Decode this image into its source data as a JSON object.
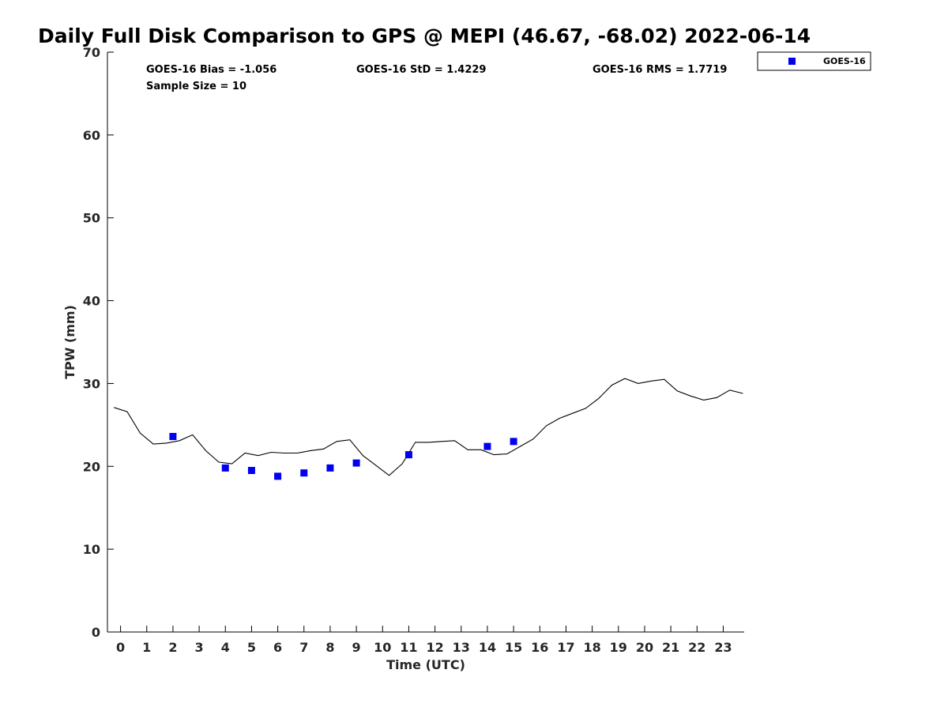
{
  "chart_data": {
    "type": "scatter",
    "title": "Daily Full Disk Comparison to GPS @ MEPI (46.67, -68.02) 2022-06-14",
    "xlabel": "Time (UTC)",
    "ylabel": "TPW (mm)",
    "xlim": [
      -0.5,
      23.8
    ],
    "ylim": [
      0,
      70
    ],
    "x_ticks": [
      0,
      1,
      2,
      3,
      4,
      5,
      6,
      7,
      8,
      9,
      10,
      11,
      12,
      13,
      14,
      15,
      16,
      17,
      18,
      19,
      20,
      21,
      22,
      23
    ],
    "x_tick_labels": [
      "0",
      "1",
      "2",
      "3",
      "4",
      "5",
      "6",
      "7",
      "8",
      "9",
      "10",
      "11",
      "12",
      "13",
      "14",
      "15",
      "16",
      "17",
      "18",
      "19",
      "20",
      "21",
      "22",
      "23"
    ],
    "y_ticks": [
      0,
      10,
      20,
      30,
      40,
      50,
      60,
      70
    ],
    "y_tick_labels": [
      "0",
      "10",
      "20",
      "30",
      "40",
      "50",
      "60",
      "70"
    ],
    "stats": {
      "bias": "GOES-16 Bias = -1.056",
      "std": "GOES-16 StD = 1.4229",
      "rms": "GOES-16 RMS = 1.7719",
      "sample_size": "Sample Size = 10"
    },
    "legend": {
      "position": "top-right",
      "entries": [
        {
          "name": "GOES-16",
          "marker": "square",
          "color": "#0000ee"
        }
      ]
    },
    "series": [
      {
        "name": "GPS",
        "kind": "line",
        "color": "#000000",
        "x": [
          -0.25,
          0.25,
          0.75,
          1.25,
          1.75,
          2.25,
          2.75,
          3.25,
          3.75,
          4.25,
          4.75,
          5.25,
          5.75,
          6.25,
          6.75,
          7.25,
          7.75,
          8.25,
          8.75,
          9.25,
          9.75,
          10.25,
          10.75,
          11.25,
          11.75,
          12.25,
          12.75,
          13.25,
          13.75,
          14.25,
          14.75,
          15.25,
          15.75,
          16.25,
          16.75,
          17.25,
          17.75,
          18.25,
          18.75,
          19.25,
          19.75,
          20.25,
          20.75,
          21.25,
          21.75,
          22.25,
          22.75,
          23.25,
          23.75
        ],
        "y": [
          27.1,
          26.6,
          24.0,
          22.7,
          22.8,
          23.1,
          23.8,
          21.9,
          20.5,
          20.3,
          21.6,
          21.3,
          21.7,
          21.6,
          21.6,
          21.9,
          22.1,
          23.0,
          23.2,
          21.3,
          20.1,
          18.9,
          20.3,
          22.9,
          22.9,
          23.0,
          23.1,
          22.0,
          22.0,
          21.4,
          21.5,
          22.4,
          23.3,
          24.9,
          25.8,
          26.4,
          27.0,
          28.2,
          29.8,
          30.6,
          30.0,
          30.3,
          30.5,
          29.1,
          28.5,
          28.0,
          28.3,
          29.2,
          28.8
        ]
      },
      {
        "name": "GOES-16",
        "kind": "scatter",
        "marker": "square",
        "color": "#0000ee",
        "x": [
          2,
          4,
          5,
          6,
          7,
          8,
          9,
          11,
          14,
          15
        ],
        "y": [
          23.6,
          19.8,
          19.5,
          18.8,
          19.2,
          19.8,
          20.4,
          21.4,
          22.4,
          23.0
        ]
      }
    ]
  }
}
